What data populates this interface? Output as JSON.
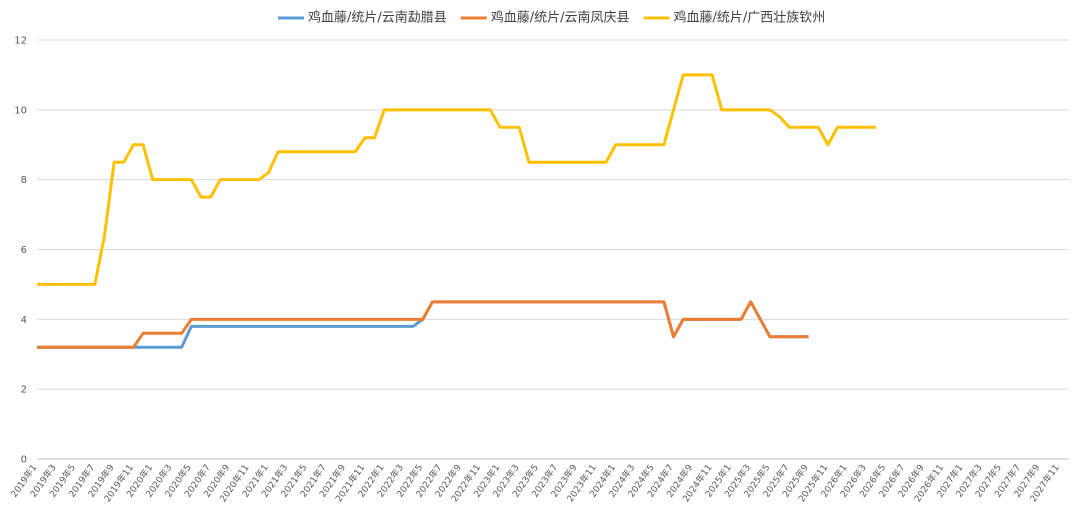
{
  "chart_data": {
    "type": "line",
    "categories": [
      "2019年1",
      null,
      "2019年3",
      null,
      "2019年5",
      null,
      "2019年7",
      null,
      "2019年9",
      null,
      "2019年11",
      null,
      "2020年1",
      null,
      "2020年3",
      null,
      "2020年5",
      null,
      "2020年7",
      null,
      "2020年9",
      null,
      "2020年11",
      null,
      "2021年1",
      null,
      "2021年3",
      null,
      "2021年5",
      null,
      "2021年7",
      null,
      "2021年9",
      null,
      "2021年11",
      null,
      "2022年1",
      null,
      "2022年3",
      null,
      "2022年5",
      null,
      "2022年7",
      null,
      "2022年9",
      null,
      "2022年11",
      null,
      "2023年1",
      null,
      "2023年3",
      null,
      "2023年5",
      null,
      "2023年7",
      null,
      "2023年9",
      null,
      "2023年11",
      null,
      "2024年1",
      null,
      "2024年3",
      null,
      "2024年5",
      null,
      "2024年7",
      null,
      "2024年9",
      null,
      "2024年11",
      null,
      "2025年1",
      null,
      "2025年3",
      null,
      "2025年5",
      null,
      "2025年7",
      null,
      "2025年9",
      null,
      "2025年11",
      null,
      "2026年1",
      null,
      "2026年3",
      null,
      "2026年5",
      null,
      "2026年7",
      null,
      "2026年9",
      null,
      "2026年11",
      null,
      "2027年1",
      null,
      "2027年3",
      null,
      "2027年5",
      null,
      "2027年7",
      null,
      "2027年9",
      null,
      "2027年11",
      null
    ],
    "series": [
      {
        "name": "鸡血藤/统片/云南勐腊县",
        "color": "#5b9bd5",
        "values": [
          3.2,
          3.2,
          3.2,
          3.2,
          3.2,
          3.2,
          3.2,
          3.2,
          3.2,
          3.2,
          3.2,
          3.2,
          3.2,
          3.2,
          3.2,
          3.2,
          3.8,
          3.8,
          3.8,
          3.8,
          3.8,
          3.8,
          3.8,
          3.8,
          3.8,
          3.8,
          3.8,
          3.8,
          3.8,
          3.8,
          3.8,
          3.8,
          3.8,
          3.8,
          3.8,
          3.8,
          3.8,
          3.8,
          3.8,
          3.8,
          4,
          4.5,
          4.5,
          4.5,
          4.5,
          4.5,
          4.5,
          4.5,
          4.5,
          4.5,
          4.5,
          4.5,
          4.5,
          4.5,
          4.5,
          4.5,
          4.5,
          4.5,
          4.5,
          4.5,
          4.5,
          4.5,
          4.5,
          4.5,
          4.5,
          4.5,
          3.5,
          4,
          4,
          4,
          4,
          4,
          4,
          4,
          4.5,
          4,
          3.5,
          3.5,
          3.5,
          3.5,
          3.5,
          null,
          null,
          null,
          null,
          null,
          null,
          null,
          null,
          null,
          null,
          null,
          null,
          null,
          null,
          null,
          null,
          null,
          null,
          null,
          null,
          null,
          null,
          null,
          null,
          null,
          null,
          null
        ]
      },
      {
        "name": "鸡血藤/统片/云南凤庆县",
        "color": "#ed7d31",
        "values": [
          3.2,
          3.2,
          3.2,
          3.2,
          3.2,
          3.2,
          3.2,
          3.2,
          3.2,
          3.2,
          3.2,
          3.6,
          3.6,
          3.6,
          3.6,
          3.6,
          4,
          4,
          4,
          4,
          4,
          4,
          4,
          4,
          4,
          4,
          4,
          4,
          4,
          4,
          4,
          4,
          4,
          4,
          4,
          4,
          4,
          4,
          4,
          4,
          4,
          4.5,
          4.5,
          4.5,
          4.5,
          4.5,
          4.5,
          4.5,
          4.5,
          4.5,
          4.5,
          4.5,
          4.5,
          4.5,
          4.5,
          4.5,
          4.5,
          4.5,
          4.5,
          4.5,
          4.5,
          4.5,
          4.5,
          4.5,
          4.5,
          4.5,
          3.5,
          4,
          4,
          4,
          4,
          4,
          4,
          4,
          4.5,
          4,
          3.5,
          3.5,
          3.5,
          3.5,
          3.5,
          null,
          null,
          null,
          null,
          null,
          null,
          null,
          null,
          null,
          null,
          null,
          null,
          null,
          null,
          null,
          null,
          null,
          null,
          null,
          null,
          null,
          null,
          null,
          null,
          null,
          null,
          null
        ]
      },
      {
        "name": "鸡血藤/统片/广西壮族钦州",
        "color": "#ffc000",
        "values": [
          5,
          5,
          5,
          5,
          5,
          5,
          5,
          6.4,
          8.5,
          8.5,
          9,
          9,
          8,
          8,
          8,
          8,
          8,
          7.5,
          7.5,
          8,
          8,
          8,
          8,
          8,
          8.2,
          8.8,
          8.8,
          8.8,
          8.8,
          8.8,
          8.8,
          8.8,
          8.8,
          8.8,
          9.2,
          9.2,
          10,
          10,
          10,
          10,
          10,
          10,
          10,
          10,
          10,
          10,
          10,
          10,
          9.5,
          9.5,
          9.5,
          8.5,
          8.5,
          8.5,
          8.5,
          8.5,
          8.5,
          8.5,
          8.5,
          8.5,
          9,
          9,
          9,
          9,
          9,
          9,
          10,
          11,
          11,
          11,
          11,
          10,
          10,
          10,
          10,
          10,
          10,
          9.8,
          9.5,
          9.5,
          9.5,
          9.5,
          9,
          9.5,
          9.5,
          9.5,
          9.5,
          9.5,
          null,
          null,
          null,
          null,
          null,
          null,
          null,
          null,
          null,
          null,
          null,
          null,
          null,
          null,
          null,
          null,
          null,
          null,
          null,
          null
        ]
      }
    ],
    "ylim": [
      0,
      12
    ],
    "yticks": [
      0,
      2,
      4,
      6,
      8,
      10,
      12
    ],
    "grid": true,
    "legend": "top"
  }
}
